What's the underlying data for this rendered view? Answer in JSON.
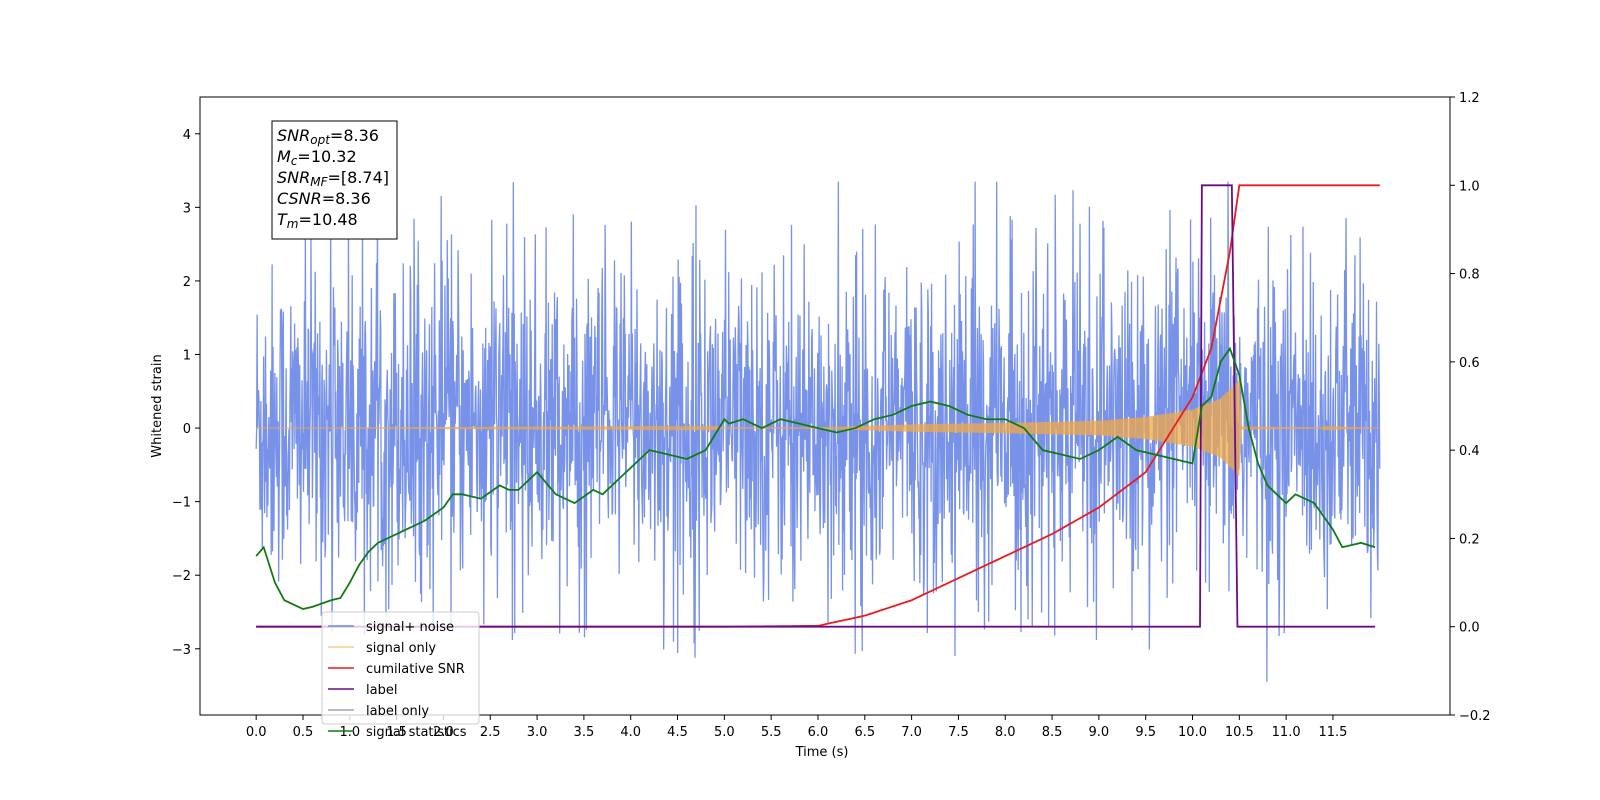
{
  "chart_data": {
    "type": "line",
    "xlabel": "Time (s)",
    "ylabel": "Whitened strain",
    "xlim": [
      -0.6,
      12.75
    ],
    "ylim": [
      -3.9,
      4.5
    ],
    "y2lim": [
      -0.2,
      1.2
    ],
    "x_ticks": [
      "0.0",
      "0.5",
      "1.0",
      "1.5",
      "2.0",
      "2.5",
      "3.0",
      "3.5",
      "4.0",
      "4.5",
      "5.0",
      "5.5",
      "6.0",
      "6.5",
      "7.0",
      "7.5",
      "8.0",
      "8.5",
      "9.0",
      "9.5",
      "10.0",
      "10.5",
      "11.0",
      "11.5"
    ],
    "y_ticks": [
      "−3",
      "−2",
      "−1",
      "0",
      "1",
      "2",
      "3",
      "4"
    ],
    "y2_ticks": [
      "−0.2",
      "0.0",
      "0.2",
      "0.4",
      "0.6",
      "0.8",
      "1.0",
      "1.2"
    ],
    "annotation": {
      "lines": [
        {
          "var": "SNR",
          "sub": "opt",
          "value": "=8.36"
        },
        {
          "var": "M",
          "sub": "c",
          "value": "=10.32"
        },
        {
          "var": "SNR",
          "sub": "MF",
          "value": "=[8.74]"
        },
        {
          "var": "CSNR",
          "sub": "",
          "value": "=8.36"
        },
        {
          "var": "T",
          "sub": "m",
          "value": "=10.48"
        }
      ]
    },
    "legend": {
      "placement": "lower-left",
      "entries": [
        "signal+ noise",
        "signal only",
        "cumilative SNR",
        "label",
        "label only",
        "signal statistics"
      ]
    },
    "series": [
      {
        "name": "signal+ noise",
        "axis": "left",
        "color": "#6d8ae6",
        "kind": "noise",
        "x_range": [
          0.0,
          12.0
        ],
        "typical_band": [
          -1.9,
          2.0
        ],
        "extremes": [
          -3.45,
          3.35
        ]
      },
      {
        "name": "signal only",
        "axis": "left",
        "color": "#f0a848",
        "kind": "chirp",
        "x_range": [
          0.0,
          12.0
        ],
        "envelope_x": [
          0.0,
          6.0,
          7.0,
          8.0,
          9.0,
          9.5,
          10.0,
          10.3,
          10.5,
          10.52,
          12.0
        ],
        "envelope_amp": [
          0.0,
          0.01,
          0.05,
          0.07,
          0.1,
          0.15,
          0.25,
          0.4,
          0.65,
          0.02,
          0.0
        ]
      },
      {
        "name": "cumilative SNR",
        "axis": "right",
        "color": "#e81c1c",
        "x": [
          0.0,
          5.0,
          6.0,
          6.5,
          7.0,
          7.5,
          8.0,
          8.5,
          9.0,
          9.5,
          10.0,
          10.2,
          10.4,
          10.5,
          12.0
        ],
        "y": [
          0.0,
          0.0,
          0.002,
          0.025,
          0.06,
          0.11,
          0.16,
          0.21,
          0.27,
          0.35,
          0.52,
          0.63,
          0.85,
          1.0,
          1.0
        ]
      },
      {
        "name": "label",
        "axis": "right",
        "color": "#6a0d83",
        "x": [
          0.0,
          10.08,
          10.1,
          10.42,
          10.48,
          11.95
        ],
        "y": [
          0.0,
          0.0,
          1.0,
          1.0,
          0.0,
          0.0
        ]
      },
      {
        "name": "label only",
        "axis": "right",
        "color": "#9da3c2",
        "x": [],
        "y": []
      },
      {
        "name": "signal statistics",
        "axis": "right",
        "color": "#137a13",
        "x": [
          0.0,
          0.08,
          0.2,
          0.3,
          0.5,
          0.6,
          0.8,
          0.9,
          1.0,
          1.1,
          1.2,
          1.3,
          1.5,
          1.6,
          1.8,
          2.0,
          2.1,
          2.2,
          2.4,
          2.6,
          2.7,
          2.8,
          3.0,
          3.2,
          3.4,
          3.6,
          3.7,
          3.8,
          3.9,
          4.0,
          4.1,
          4.2,
          4.4,
          4.6,
          4.8,
          5.0,
          5.05,
          5.2,
          5.4,
          5.6,
          5.8,
          6.0,
          6.2,
          6.4,
          6.6,
          6.8,
          7.0,
          7.2,
          7.4,
          7.6,
          7.8,
          8.0,
          8.2,
          8.4,
          8.6,
          8.8,
          9.0,
          9.2,
          9.4,
          9.6,
          9.8,
          10.0,
          10.1,
          10.2,
          10.3,
          10.4,
          10.5,
          10.6,
          10.7,
          10.8,
          10.9,
          11.0,
          11.1,
          11.3,
          11.5,
          11.6,
          11.8,
          11.95
        ],
        "y": [
          0.16,
          0.18,
          0.1,
          0.06,
          0.04,
          0.045,
          0.06,
          0.065,
          0.1,
          0.14,
          0.17,
          0.19,
          0.21,
          0.22,
          0.24,
          0.27,
          0.3,
          0.3,
          0.29,
          0.32,
          0.31,
          0.31,
          0.35,
          0.3,
          0.28,
          0.31,
          0.3,
          0.32,
          0.34,
          0.36,
          0.38,
          0.4,
          0.39,
          0.38,
          0.4,
          0.47,
          0.46,
          0.47,
          0.45,
          0.47,
          0.46,
          0.45,
          0.44,
          0.45,
          0.47,
          0.48,
          0.5,
          0.51,
          0.5,
          0.48,
          0.47,
          0.47,
          0.45,
          0.4,
          0.39,
          0.38,
          0.4,
          0.43,
          0.4,
          0.39,
          0.38,
          0.37,
          0.5,
          0.52,
          0.6,
          0.63,
          0.57,
          0.45,
          0.37,
          0.32,
          0.3,
          0.28,
          0.3,
          0.28,
          0.22,
          0.18,
          0.19,
          0.18
        ]
      }
    ]
  }
}
